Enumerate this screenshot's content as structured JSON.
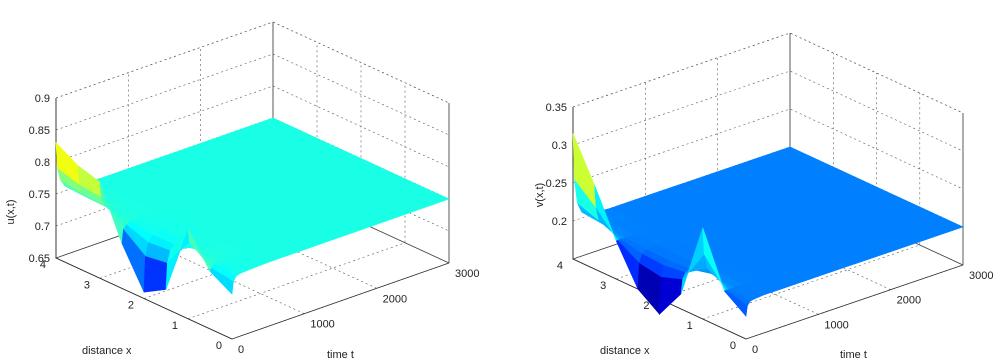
{
  "chart_data": [
    {
      "type": "surface",
      "title": "",
      "xlabel": "distance x",
      "ylabel": "time t",
      "zlabel": "u(x,t)",
      "xlim": [
        0,
        4
      ],
      "ylim": [
        0,
        3000
      ],
      "zlim": [
        0.65,
        0.9
      ],
      "x_ticks": [
        "0",
        "1",
        "2",
        "3",
        "4"
      ],
      "y_ticks": [
        "0",
        "1000",
        "2000",
        "3000"
      ],
      "z_ticks": [
        "0.65",
        "0.7",
        "0.75",
        "0.8",
        "0.85",
        "0.9"
      ],
      "colormap": "jet",
      "grid": true,
      "x": [
        0,
        0.5,
        1,
        1.5,
        2,
        2.5,
        3,
        3.5,
        4
      ],
      "t": [
        0,
        20,
        60,
        120,
        250,
        500,
        1000,
        1500,
        2000,
        2500,
        3000
      ],
      "z": [
        [
          0.72,
          0.739,
          0.746,
          0.748,
          0.749,
          0.75,
          0.75,
          0.75,
          0.75,
          0.75,
          0.75
        ],
        [
          0.74,
          0.744,
          0.748,
          0.749,
          0.75,
          0.75,
          0.75,
          0.75,
          0.75,
          0.75,
          0.75
        ],
        [
          0.79,
          0.77,
          0.76,
          0.754,
          0.751,
          0.75,
          0.75,
          0.75,
          0.75,
          0.75,
          0.75
        ],
        [
          0.68,
          0.72,
          0.738,
          0.745,
          0.749,
          0.75,
          0.75,
          0.75,
          0.75,
          0.75,
          0.75
        ],
        [
          0.66,
          0.715,
          0.735,
          0.744,
          0.748,
          0.75,
          0.75,
          0.75,
          0.75,
          0.75,
          0.75
        ],
        [
          0.72,
          0.741,
          0.747,
          0.749,
          0.75,
          0.75,
          0.75,
          0.75,
          0.75,
          0.75,
          0.75
        ],
        [
          0.8,
          0.776,
          0.762,
          0.755,
          0.751,
          0.75,
          0.75,
          0.75,
          0.75,
          0.75,
          0.75
        ],
        [
          0.81,
          0.78,
          0.764,
          0.756,
          0.752,
          0.75,
          0.75,
          0.75,
          0.75,
          0.75,
          0.75
        ],
        [
          0.83,
          0.79,
          0.77,
          0.758,
          0.752,
          0.75,
          0.75,
          0.75,
          0.75,
          0.75,
          0.75
        ]
      ]
    },
    {
      "type": "surface",
      "title": "",
      "xlabel": "distance x",
      "ylabel": "time t",
      "zlabel": "v(x,t)",
      "xlim": [
        0,
        4
      ],
      "ylim": [
        0,
        3000
      ],
      "zlim": [
        0.15,
        0.35
      ],
      "x_ticks": [
        "0",
        "1",
        "2",
        "3",
        "4"
      ],
      "y_ticks": [
        "0",
        "1000",
        "2000",
        "3000"
      ],
      "z_ticks": [
        "0.2",
        "0.25",
        "0.3",
        "0.35"
      ],
      "colormap": "jet",
      "grid": true,
      "x": [
        0,
        0.5,
        1,
        1.5,
        2,
        2.5,
        3,
        3.5,
        4
      ],
      "t": [
        0,
        20,
        60,
        120,
        250,
        500,
        1000,
        1500,
        2000,
        2500,
        3000
      ],
      "z": [
        [
          0.18,
          0.193,
          0.198,
          0.199,
          0.2,
          0.2,
          0.2,
          0.2,
          0.2,
          0.2,
          0.2
        ],
        [
          0.2,
          0.2,
          0.2,
          0.2,
          0.2,
          0.2,
          0.2,
          0.2,
          0.2,
          0.2,
          0.2
        ],
        [
          0.27,
          0.235,
          0.215,
          0.206,
          0.201,
          0.2,
          0.2,
          0.2,
          0.2,
          0.2,
          0.2
        ],
        [
          0.17,
          0.188,
          0.196,
          0.199,
          0.2,
          0.2,
          0.2,
          0.2,
          0.2,
          0.2,
          0.2
        ],
        [
          0.13,
          0.178,
          0.192,
          0.197,
          0.199,
          0.2,
          0.2,
          0.2,
          0.2,
          0.2,
          0.2
        ],
        [
          0.15,
          0.183,
          0.194,
          0.198,
          0.2,
          0.2,
          0.2,
          0.2,
          0.2,
          0.2,
          0.2
        ],
        [
          0.2,
          0.2,
          0.2,
          0.2,
          0.2,
          0.2,
          0.2,
          0.2,
          0.2,
          0.2,
          0.2
        ],
        [
          0.26,
          0.23,
          0.212,
          0.205,
          0.201,
          0.2,
          0.2,
          0.2,
          0.2,
          0.2,
          0.2
        ],
        [
          0.315,
          0.255,
          0.222,
          0.208,
          0.202,
          0.2,
          0.2,
          0.2,
          0.2,
          0.2,
          0.2
        ]
      ]
    }
  ]
}
